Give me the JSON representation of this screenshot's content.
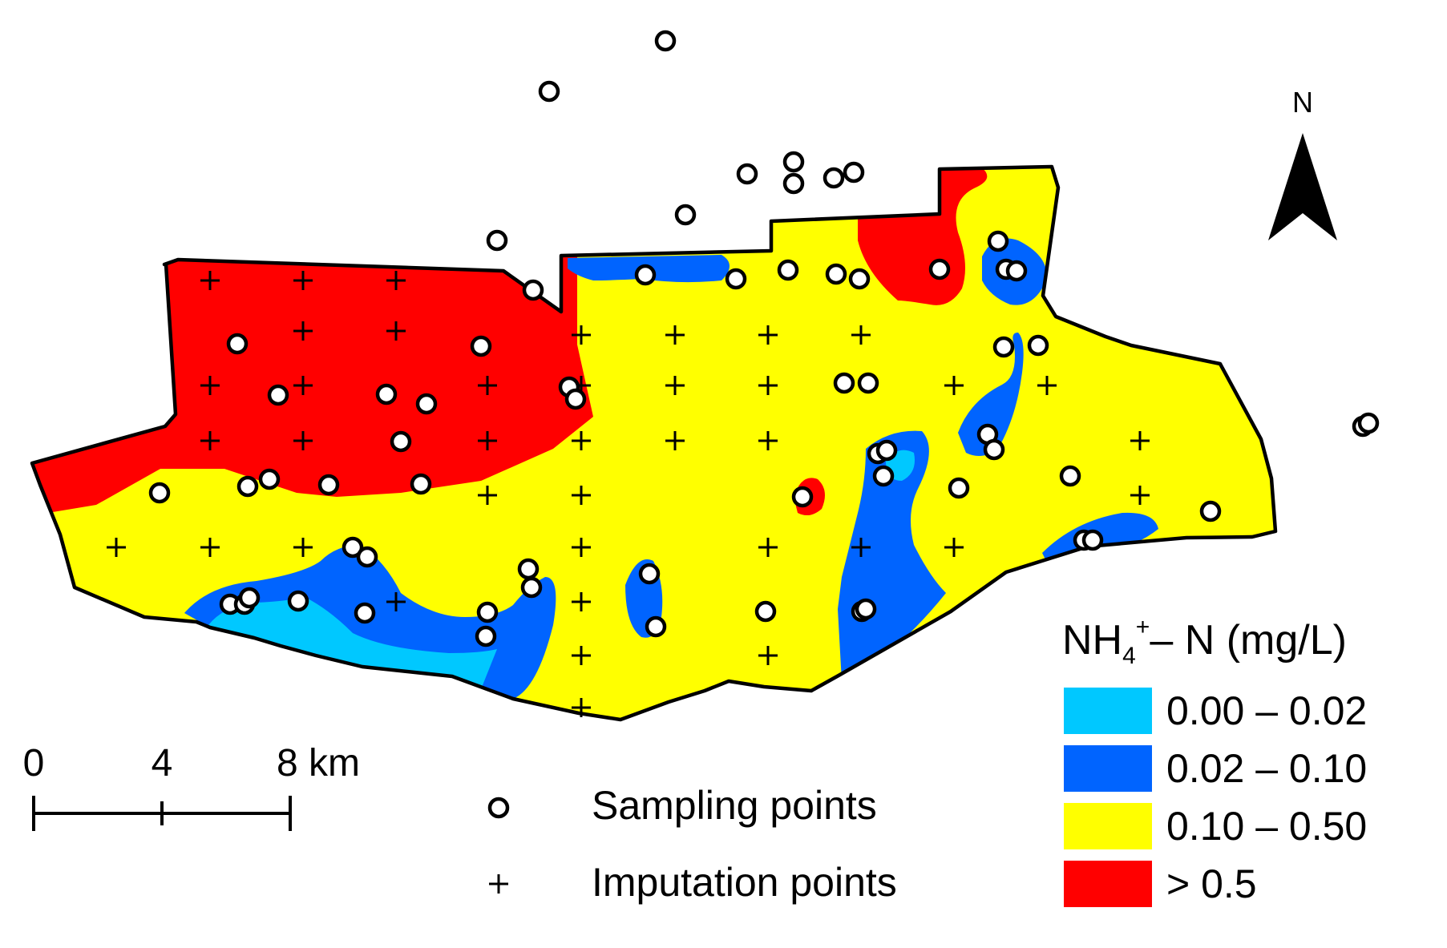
{
  "north_arrow": {
    "label": "N"
  },
  "scale_bar": {
    "labels": [
      "0",
      "4",
      "8 km"
    ]
  },
  "point_legend": {
    "sampling_label": "Sampling points",
    "imputation_label": "Imputation points"
  },
  "color_legend": {
    "title_main": "NH",
    "title_sub": "4",
    "title_sup": "+",
    "title_rest": "– N (mg/L)",
    "classes": [
      {
        "label": "0.00 – 0.02",
        "color": "#00c8ff"
      },
      {
        "label": "0.02 – 0.10",
        "color": "#0064ff"
      },
      {
        "label": "0.10 – 0.50",
        "color": "#ffff00"
      },
      {
        "label": "> 0.5",
        "color": "#ff0000"
      }
    ]
  },
  "map_colors": {
    "outline": "#000000",
    "point_fill": "#ffffff"
  }
}
